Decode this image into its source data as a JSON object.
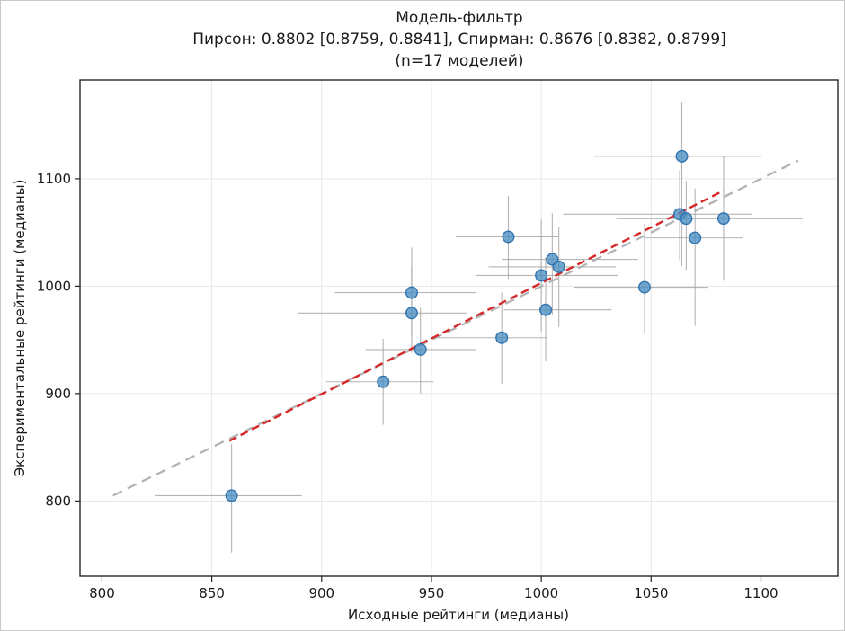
{
  "chart_data": {
    "type": "scatter",
    "title": "Модель-фильтр",
    "subtitle": "Пирсон: 0.8802 [0.8759, 0.8841], Спирман: 0.8676 [0.8382, 0.8799]",
    "note": "(n=17 моделей)",
    "xlabel": "Исходные рейтинги (медианы)",
    "ylabel": "Экспериментальные рейтинги (медианы)",
    "xlim": [
      790,
      1135
    ],
    "ylim": [
      730,
      1192
    ],
    "xticks": [
      800,
      850,
      900,
      950,
      1000,
      1050,
      1100
    ],
    "yticks": [
      800,
      900,
      1000,
      1100
    ],
    "grid": true,
    "legend": "none",
    "stats": {
      "pearson": 0.8802,
      "pearson_ci": [
        0.8759,
        0.8841
      ],
      "spearman": 0.8676,
      "spearman_ci": [
        0.8382,
        0.8799
      ],
      "n_models": 17
    },
    "points": [
      {
        "x": 859,
        "y": 805,
        "x_lo": 824,
        "x_hi": 891,
        "y_lo": 752,
        "y_hi": 853
      },
      {
        "x": 928,
        "y": 911,
        "x_lo": 902,
        "x_hi": 951,
        "y_lo": 871,
        "y_hi": 951
      },
      {
        "x": 941,
        "y": 994,
        "x_lo": 906,
        "x_hi": 970,
        "y_lo": 953,
        "y_hi": 1036
      },
      {
        "x": 941,
        "y": 975,
        "x_lo": 889,
        "x_hi": 966,
        "y_lo": 938,
        "y_hi": 1019
      },
      {
        "x": 945,
        "y": 941,
        "x_lo": 920,
        "x_hi": 970,
        "y_lo": 900,
        "y_hi": 980
      },
      {
        "x": 982,
        "y": 952,
        "x_lo": 953,
        "x_hi": 1003,
        "y_lo": 909,
        "y_hi": 994
      },
      {
        "x": 985,
        "y": 1046,
        "x_lo": 961,
        "x_hi": 1008,
        "y_lo": 1007,
        "y_hi": 1084
      },
      {
        "x": 1000,
        "y": 1010,
        "x_lo": 970,
        "x_hi": 1035,
        "y_lo": 958,
        "y_hi": 1062
      },
      {
        "x": 1002,
        "y": 978,
        "x_lo": 983,
        "x_hi": 1032,
        "y_lo": 930,
        "y_hi": 1027
      },
      {
        "x": 1005,
        "y": 1025,
        "x_lo": 982,
        "x_hi": 1044,
        "y_lo": 973,
        "y_hi": 1068
      },
      {
        "x": 1008,
        "y": 1018,
        "x_lo": 976,
        "x_hi": 1034,
        "y_lo": 962,
        "y_hi": 1055
      },
      {
        "x": 1047,
        "y": 999,
        "x_lo": 1015,
        "x_hi": 1076,
        "y_lo": 956,
        "y_hi": 1058
      },
      {
        "x": 1064,
        "y": 1121,
        "x_lo": 1024,
        "x_hi": 1100,
        "y_lo": 1019,
        "y_hi": 1171
      },
      {
        "x": 1063,
        "y": 1067,
        "x_lo": 1010,
        "x_hi": 1096,
        "y_lo": 1024,
        "y_hi": 1108
      },
      {
        "x": 1066,
        "y": 1063,
        "x_lo": 1035,
        "x_hi": 1119,
        "y_lo": 1015,
        "y_hi": 1098
      },
      {
        "x": 1070,
        "y": 1045,
        "x_lo": 1047,
        "x_hi": 1092,
        "y_lo": 963,
        "y_hi": 1091
      },
      {
        "x": 1083,
        "y": 1063,
        "x_lo": 1034,
        "x_hi": 1119,
        "y_lo": 1005,
        "y_hi": 1121
      }
    ],
    "identity_line": {
      "x1": 805,
      "y1": 805,
      "x2": 1117,
      "y2": 1117,
      "style": "dashed",
      "color": "#b3b3b3"
    },
    "fit_line": {
      "x1": 858,
      "y1": 856,
      "x2": 1083,
      "y2": 1089,
      "style": "dashed",
      "color": "#d62728"
    },
    "colors": {
      "marker_fill": "#4a90c2",
      "marker_edge": "#2b6fad",
      "error_bar": "#9c9c9c",
      "grid": "#e6e6e6",
      "spine": "#262626",
      "text": "#1a1a1a"
    }
  }
}
